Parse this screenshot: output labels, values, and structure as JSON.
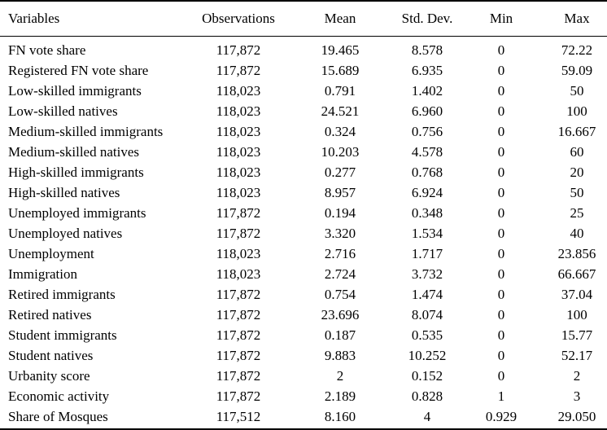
{
  "colors": {
    "background": "#ffffff",
    "text": "#000000",
    "rule": "#000000"
  },
  "table": {
    "column_keys": [
      "variable",
      "observations",
      "mean",
      "std_dev",
      "min",
      "max"
    ],
    "columns": [
      "Variables",
      "Observations",
      "Mean",
      "Std. Dev.",
      "Min",
      "Max"
    ],
    "rows": [
      [
        "FN vote share",
        "117,872",
        "19.465",
        "8.578",
        "0",
        "72.22"
      ],
      [
        "Registered FN vote share",
        "117,872",
        "15.689",
        "6.935",
        "0",
        "59.09"
      ],
      [
        "Low-skilled immigrants",
        "118,023",
        "0.791",
        "1.402",
        "0",
        "50"
      ],
      [
        "Low-skilled natives",
        "118,023",
        "24.521",
        "6.960",
        "0",
        "100"
      ],
      [
        "Medium-skilled immigrants",
        "118,023",
        "0.324",
        "0.756",
        "0",
        "16.667"
      ],
      [
        "Medium-skilled natives",
        "118,023",
        "10.203",
        "4.578",
        "0",
        "60"
      ],
      [
        "High-skilled immigrants",
        "118,023",
        "0.277",
        "0.768",
        "0",
        "20"
      ],
      [
        "High-skilled natives",
        "118,023",
        "8.957",
        "6.924",
        "0",
        "50"
      ],
      [
        "Unemployed immigrants",
        "117,872",
        "0.194",
        "0.348",
        "0",
        "25"
      ],
      [
        "Unemployed natives",
        "117,872",
        "3.320",
        "1.534",
        "0",
        "40"
      ],
      [
        "Unemployment",
        "118,023",
        "2.716",
        "1.717",
        "0",
        "23.856"
      ],
      [
        "Immigration",
        "118,023",
        "2.724",
        "3.732",
        "0",
        "66.667"
      ],
      [
        "Retired immigrants",
        "117,872",
        "0.754",
        "1.474",
        "0",
        "37.04"
      ],
      [
        "Retired natives",
        "117,872",
        "23.696",
        "8.074",
        "0",
        "100"
      ],
      [
        "Student immigrants",
        "117,872",
        "0.187",
        "0.535",
        "0",
        "15.77"
      ],
      [
        "Student natives",
        "117,872",
        "9.883",
        "10.252",
        "0",
        "52.17"
      ],
      [
        "Urbanity score",
        "117,872",
        "2",
        "0.152",
        "0",
        "2"
      ],
      [
        "Economic activity",
        "117,872",
        "2.189",
        "0.828",
        "1",
        "3"
      ],
      [
        "Share of Mosques",
        "117,512",
        "8.160",
        "4",
        "0.929",
        "29.050"
      ]
    ]
  }
}
